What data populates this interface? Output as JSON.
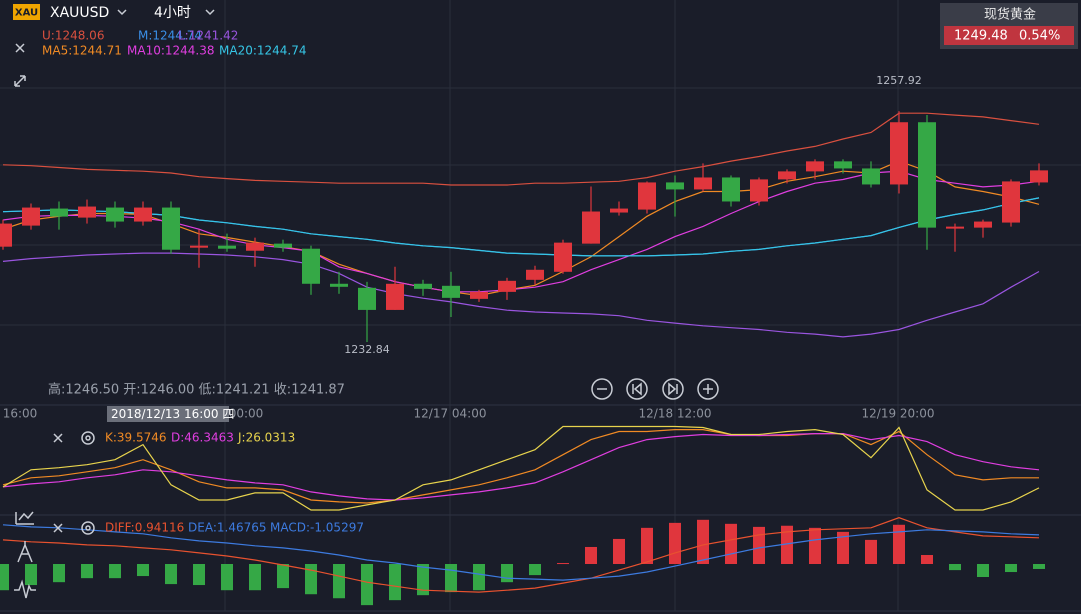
{
  "header": {
    "badge": "XAU",
    "symbol": "XAUUSD",
    "interval": "4小时"
  },
  "quote": {
    "name": "现货黄金",
    "price": "1249.48",
    "change": "0.54%"
  },
  "ohlc_readout": "高:1246.50 开:1246.00 低:1241.21 收:1241.87",
  "x_axis_labels": [
    "16:00",
    "00:00",
    "12/17 04:00",
    "12/18 12:00",
    "12/19 20:00"
  ],
  "cursor_label": "2018/12/13 16:00 四",
  "chart_data": [
    {
      "type": "candlestick",
      "up_color": "#e0363d",
      "down_color": "#35a846",
      "ylim": [
        1226,
        1270
      ],
      "grid": true,
      "annotations": [
        "1257.92",
        "1232.84"
      ],
      "open": [
        1243.2,
        1245.49,
        1247.34,
        1246.36,
        1247.45,
        1245.93,
        1247.45,
        1243.09,
        1243.31,
        1242.76,
        1243.53,
        1242.98,
        1239.17,
        1238.73,
        1236.33,
        1239.17,
        1238.95,
        1237.53,
        1238.29,
        1239.6,
        1240.47,
        1243.53,
        1246.91,
        1247.23,
        1250.18,
        1249.42,
        1250.72,
        1248.11,
        1250.51,
        1251.38,
        1252.47,
        1251.7,
        1249.96,
        1256.72,
        1245.16,
        1245.27,
        1245.82,
        1250.18
      ],
      "high": [
        1246.14,
        1247.89,
        1248.11,
        1248.32,
        1248.11,
        1248.11,
        1248.11,
        1245.05,
        1244.62,
        1244.18,
        1243.96,
        1243.31,
        1240.47,
        1239.38,
        1241.02,
        1239.6,
        1240.47,
        1238.51,
        1239.82,
        1241.13,
        1243.96,
        1249.74,
        1248.11,
        1250.29,
        1250.94,
        1252.25,
        1250.94,
        1250.72,
        1251.6,
        1252.69,
        1252.69,
        1252.47,
        1257.92,
        1257.5,
        1245.71,
        1246.14,
        1250.51,
        1252.25
      ],
      "low": [
        1242.87,
        1245.05,
        1245.05,
        1245.71,
        1245.27,
        1245.49,
        1242.44,
        1240.91,
        1242.65,
        1241.02,
        1242.65,
        1237.97,
        1238.08,
        1232.84,
        1236.33,
        1237.86,
        1235.56,
        1237.2,
        1237.42,
        1239.06,
        1240.26,
        1243.53,
        1246.58,
        1246.8,
        1246.47,
        1249.2,
        1247.56,
        1247.67,
        1250.07,
        1250.51,
        1251.16,
        1249.63,
        1248.98,
        1242.87,
        1242.65,
        1244.18,
        1245.38,
        1249.85
      ],
      "close": [
        1245.71,
        1247.45,
        1246.47,
        1247.56,
        1245.93,
        1247.45,
        1242.87,
        1243.31,
        1242.98,
        1243.64,
        1243.09,
        1239.17,
        1238.84,
        1236.33,
        1239.17,
        1238.62,
        1237.64,
        1238.29,
        1239.49,
        1240.69,
        1243.64,
        1247.02,
        1247.34,
        1250.18,
        1249.42,
        1250.72,
        1248.11,
        1250.51,
        1251.38,
        1252.47,
        1251.7,
        1249.96,
        1256.72,
        1245.27,
        1245.38,
        1245.93,
        1250.29,
        1251.49
      ],
      "series": [
        {
          "name": "U:1248.06",
          "color": "#d9503f",
          "values": [
            1252.1,
            1252.0,
            1251.8,
            1251.6,
            1251.5,
            1251.4,
            1251.2,
            1250.8,
            1250.6,
            1250.4,
            1250.3,
            1250.2,
            1250.1,
            1250.1,
            1250.1,
            1250.1,
            1249.9,
            1249.9,
            1249.9,
            1250.1,
            1250.1,
            1250.2,
            1250.3,
            1250.7,
            1251.4,
            1251.9,
            1252.5,
            1253.0,
            1253.6,
            1254.1,
            1254.9,
            1255.6,
            1257.7,
            1257.7,
            1257.5,
            1257.3,
            1256.9,
            1256.5
          ]
        },
        {
          "name": "M:1244.74",
          "color": "#3a8ee6",
          "values": [
            1247.0,
            1247.1,
            1247.2,
            1247.1,
            1247.0,
            1246.8,
            1246.6,
            1246.1,
            1245.8,
            1245.4,
            1245.1,
            1244.6,
            1244.3,
            1244.0,
            1243.6,
            1243.3,
            1243.1,
            1242.8,
            1242.5,
            1242.4,
            1242.3,
            1242.2,
            1242.2,
            1242.2,
            1242.3,
            1242.4,
            1242.7,
            1242.9,
            1243.3,
            1243.6,
            1244.0,
            1244.4,
            1245.3,
            1246.1,
            1246.7,
            1247.2,
            1247.9,
            1248.5
          ]
        },
        {
          "name": "L:1241.42",
          "color": "#9a55e0",
          "values": [
            1241.6,
            1241.9,
            1242.1,
            1242.3,
            1242.4,
            1242.5,
            1242.5,
            1242.4,
            1242.3,
            1242.1,
            1241.8,
            1241.3,
            1240.3,
            1238.8,
            1238.1,
            1237.6,
            1237.2,
            1236.7,
            1236.3,
            1236.1,
            1236.0,
            1235.9,
            1235.7,
            1235.2,
            1234.9,
            1234.6,
            1234.4,
            1234.2,
            1233.9,
            1233.7,
            1233.4,
            1233.7,
            1234.2,
            1235.2,
            1236.1,
            1237.0,
            1238.8,
            1240.5
          ]
        },
        {
          "name": "MA5:1244.71",
          "color": "#f08a24",
          "values": [
            1245.1,
            1246.1,
            1246.5,
            1246.8,
            1246.8,
            1246.7,
            1245.7,
            1244.6,
            1244.2,
            1243.7,
            1243.2,
            1242.7,
            1241.3,
            1240.3,
            1239.4,
            1238.8,
            1238.3,
            1237.9,
            1238.5,
            1239.0,
            1240.5,
            1242.1,
            1244.3,
            1246.5,
            1248.1,
            1249.2,
            1249.2,
            1249.4,
            1250.3,
            1250.8,
            1251.4,
            1251.2,
            1252.5,
            1251.4,
            1249.7,
            1249.2,
            1248.6,
            1247.8
          ]
        },
        {
          "name": "MA10:1244.38",
          "color": "#e03ee0",
          "values": [
            1246.1,
            1246.5,
            1246.6,
            1246.6,
            1246.5,
            1246.3,
            1245.9,
            1245.1,
            1244.0,
            1243.4,
            1243.1,
            1242.7,
            1241.0,
            1240.3,
            1239.4,
            1238.8,
            1238.3,
            1238.3,
            1238.5,
            1238.8,
            1239.4,
            1240.7,
            1241.8,
            1242.9,
            1244.3,
            1245.4,
            1246.8,
            1248.1,
            1249.2,
            1250.1,
            1250.5,
            1251.2,
            1251.4,
            1250.5,
            1250.1,
            1249.7,
            1249.9,
            1250.3
          ]
        },
        {
          "name": "MA20:1244.74",
          "color": "#36c6e6",
          "values": [
            1247.0,
            1247.1,
            1247.2,
            1247.1,
            1247.0,
            1246.8,
            1246.6,
            1246.1,
            1245.8,
            1245.4,
            1245.1,
            1244.6,
            1244.3,
            1244.0,
            1243.6,
            1243.3,
            1243.1,
            1242.8,
            1242.5,
            1242.4,
            1242.3,
            1242.2,
            1242.2,
            1242.2,
            1242.3,
            1242.4,
            1242.7,
            1242.9,
            1243.3,
            1243.6,
            1244.0,
            1244.4,
            1245.3,
            1246.1,
            1246.7,
            1247.2,
            1247.9,
            1248.5
          ]
        }
      ]
    },
    {
      "type": "line",
      "ylim": [
        0,
        100
      ],
      "series": [
        {
          "name": "K:39.5746",
          "color": "#f08a24",
          "values": [
            29.4,
            37.3,
            39.6,
            44.1,
            48.6,
            57.6,
            46.3,
            32.8,
            26.0,
            26.0,
            23.7,
            12.4,
            10.2,
            9.0,
            12.4,
            18.1,
            23.7,
            29.4,
            37.3,
            46.3,
            63.3,
            80.2,
            89.3,
            89.3,
            91.5,
            91.5,
            85.9,
            84.8,
            84.8,
            87.0,
            87.0,
            74.6,
            89.3,
            63.3,
            40.7,
            35.0,
            37.3,
            37.3
          ]
        },
        {
          "name": "D:46.3463",
          "color": "#e03ee0",
          "values": [
            27.1,
            30.5,
            32.8,
            37.3,
            40.7,
            46.3,
            44.1,
            39.6,
            35.0,
            31.6,
            29.4,
            21.5,
            17.0,
            13.6,
            12.4,
            14.7,
            18.1,
            21.5,
            26.0,
            31.6,
            44.1,
            57.6,
            71.2,
            80.2,
            83.6,
            85.9,
            84.8,
            84.8,
            85.9,
            87.0,
            87.0,
            80.2,
            84.8,
            78.0,
            63.3,
            55.4,
            49.7,
            46.3
          ]
        },
        {
          "name": "J:26.0313",
          "color": "#e8d44d",
          "values": [
            27.1,
            46.3,
            48.6,
            52.0,
            57.6,
            74.6,
            29.4,
            12.4,
            12.4,
            20.3,
            20.3,
            1.1,
            1.1,
            6.8,
            12.4,
            29.4,
            35.0,
            46.3,
            57.6,
            68.9,
            94.9,
            94.9,
            94.9,
            94.9,
            94.9,
            93.8,
            85.9,
            85.9,
            89.3,
            91.5,
            85.9,
            59.9,
            93.8,
            23.7,
            1.1,
            1.1,
            10.2,
            26.0
          ]
        }
      ]
    },
    {
      "type": "macd",
      "ylim": [
        -2.3,
        2.3
      ],
      "up_color": "#e0363d",
      "down_color": "#35a846",
      "series": [
        {
          "name": "DIFF:0.94116",
          "color": "#e8522f",
          "style": "line",
          "values": [
            1.26,
            1.16,
            1.1,
            1.0,
            0.95,
            0.84,
            0.74,
            0.58,
            0.42,
            0.21,
            -0.05,
            -0.32,
            -0.63,
            -0.95,
            -1.16,
            -1.37,
            -1.42,
            -1.47,
            -1.37,
            -1.26,
            -1.0,
            -0.74,
            -0.32,
            0.11,
            0.58,
            1.0,
            1.26,
            1.52,
            1.68,
            1.79,
            1.84,
            1.89,
            2.42,
            1.89,
            1.68,
            1.47,
            1.42,
            1.37
          ]
        },
        {
          "name": "DEA:1.46765",
          "color": "#3d7be0",
          "style": "line",
          "values": [
            2.05,
            1.94,
            1.89,
            1.79,
            1.68,
            1.58,
            1.37,
            1.21,
            1.1,
            0.95,
            0.84,
            0.68,
            0.47,
            0.21,
            0.05,
            -0.16,
            -0.32,
            -0.53,
            -0.74,
            -0.79,
            -0.84,
            -0.74,
            -0.63,
            -0.42,
            -0.11,
            0.21,
            0.53,
            0.84,
            1.05,
            1.26,
            1.42,
            1.58,
            1.68,
            1.79,
            1.73,
            1.68,
            1.58,
            1.52
          ]
        },
        {
          "name": "MACD:-1.05297",
          "color": "#3d7be0",
          "style": "bar",
          "values": [
            -1.37,
            -1.1,
            -0.95,
            -0.74,
            -0.74,
            -0.63,
            -1.05,
            -1.1,
            -1.37,
            -1.37,
            -1.26,
            -1.58,
            -1.79,
            -2.15,
            -1.89,
            -1.63,
            -1.47,
            -1.37,
            -0.95,
            -0.58,
            0.05,
            0.89,
            1.31,
            1.89,
            2.15,
            2.31,
            2.1,
            1.94,
            2.0,
            1.89,
            1.68,
            1.26,
            2.05,
            0.47,
            -0.32,
            -0.68,
            -0.42,
            -0.26
          ]
        }
      ]
    }
  ]
}
